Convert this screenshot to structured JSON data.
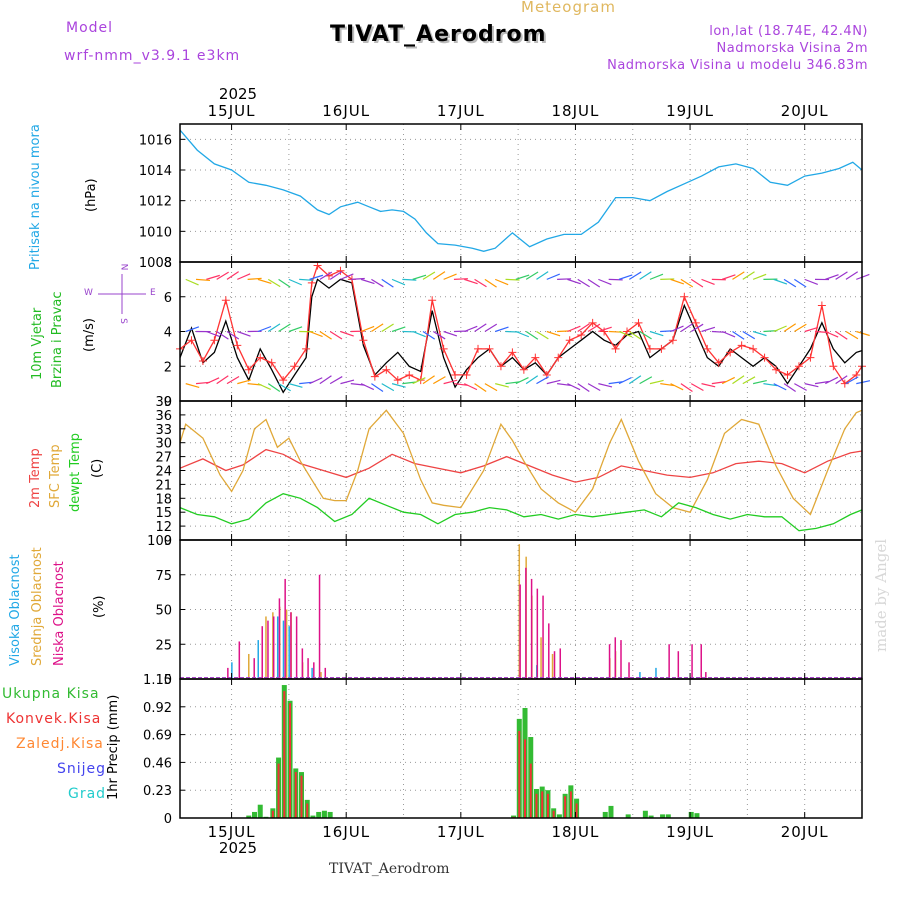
{
  "header": {
    "model_label": "Model",
    "model_name": "wrf-nmm_v3.9.1  e3km",
    "meteogram_label": "Meteogram",
    "title": "TIVAT_Aerodrom",
    "lonlat": "lon,lat (18.74E, 42.4N)",
    "elevation": "Nadmorska Visina 2m",
    "model_elevation": "Nadmorska Visina u modelu 346.83m"
  },
  "footer": {
    "station": "TIVAT_Aerodrom",
    "credit": "made by Angel"
  },
  "colors": {
    "pressure": "#22a8e6",
    "wind_speed": "#000000",
    "wind_gust": "#ff3333",
    "temp2m": "#ee4444",
    "sfc_temp": "#e0a838",
    "dewpoint": "#22cc22",
    "high_cloud": "#22a8e6",
    "mid_cloud": "#e0a838",
    "low_cloud": "#dd1188",
    "total_precip": "#33bb33",
    "conv_precip": "#ee3333",
    "frozen": "#ff8833",
    "snow": "#4444ee",
    "graupel": "#22cccc",
    "credit": "#d8d8d8"
  },
  "time_axis": {
    "year": "2025",
    "ticks": [
      "15JUL",
      "16JUL",
      "17JUL",
      "18JUL",
      "19JUL",
      "20JUL"
    ]
  },
  "panels": {
    "pressure": {
      "label": "Pritisak na nivou mora",
      "unit": "(hPa)"
    },
    "wind": {
      "label1": "10m Vjetar",
      "label2": "Brzina i Pravac",
      "unit": "(m/s)",
      "compass_n": "N",
      "compass_e": "E",
      "compass_w": "W",
      "compass_s": "S"
    },
    "temp": {
      "label1": "2m Temp",
      "label2": "SFC Temp",
      "label3": "dewpt Temp",
      "unit": "(C)"
    },
    "cloud": {
      "label1": "Visoka Oblacnost",
      "label2": "Srednja Oblacnost",
      "label3": "Niska Oblacnost",
      "unit": "(%)"
    },
    "precip": {
      "label_total": "Ukupna Kisa",
      "label_conv": "Konvek.Kisa",
      "label_frozen": "Zaledj.Kisa",
      "label_snow": "Snijeg",
      "label_graupel": "Grad",
      "unit": "1hr Precip (mm)"
    }
  },
  "chart_data": [
    {
      "type": "line",
      "title": "Pritisak na nivou mora",
      "ylabel": "(hPa)",
      "x_range_days": [
        14.55,
        20.5
      ],
      "ylim": [
        1008,
        1017
      ],
      "yticks": [
        1008,
        1010,
        1012,
        1014,
        1016
      ],
      "series": [
        {
          "name": "Pressure",
          "x": [
            14.55,
            14.7,
            14.85,
            15.0,
            15.15,
            15.3,
            15.45,
            15.6,
            15.75,
            15.85,
            15.95,
            16.1,
            16.2,
            16.3,
            16.4,
            16.5,
            16.6,
            16.7,
            16.8,
            16.95,
            17.1,
            17.2,
            17.3,
            17.45,
            17.6,
            17.75,
            17.9,
            18.05,
            18.2,
            18.35,
            18.5,
            18.65,
            18.8,
            18.95,
            19.1,
            19.25,
            19.4,
            19.55,
            19.7,
            19.85,
            20.0,
            20.15,
            20.3,
            20.42,
            20.5
          ],
          "y": [
            1016.6,
            1015.3,
            1014.4,
            1014.0,
            1013.2,
            1013.0,
            1012.7,
            1012.3,
            1011.4,
            1011.1,
            1011.6,
            1011.9,
            1011.6,
            1011.3,
            1011.4,
            1011.3,
            1010.8,
            1009.9,
            1009.2,
            1009.1,
            1008.9,
            1008.7,
            1008.9,
            1009.9,
            1009.0,
            1009.5,
            1009.8,
            1009.8,
            1010.6,
            1012.2,
            1012.2,
            1012.0,
            1012.6,
            1013.1,
            1013.6,
            1014.2,
            1014.4,
            1014.1,
            1013.2,
            1013.0,
            1013.6,
            1013.8,
            1014.1,
            1014.5,
            1014.0
          ]
        }
      ]
    },
    {
      "type": "line",
      "title": "10m Vjetar Brzina i Pravac",
      "ylabel": "(m/s)",
      "x_range_days": [
        14.55,
        20.5
      ],
      "ylim": [
        0,
        8
      ],
      "yticks": [
        0,
        2,
        4,
        6,
        8
      ],
      "series": [
        {
          "name": "Wind speed",
          "x": [
            14.55,
            14.65,
            14.75,
            14.85,
            14.95,
            15.05,
            15.15,
            15.25,
            15.35,
            15.45,
            15.55,
            15.65,
            15.7,
            15.75,
            15.85,
            15.95,
            16.05,
            16.15,
            16.25,
            16.35,
            16.45,
            16.55,
            16.65,
            16.75,
            16.85,
            16.95,
            17.05,
            17.15,
            17.25,
            17.35,
            17.45,
            17.55,
            17.65,
            17.75,
            17.85,
            17.95,
            18.05,
            18.15,
            18.25,
            18.35,
            18.45,
            18.55,
            18.65,
            18.75,
            18.85,
            18.95,
            19.05,
            19.15,
            19.25,
            19.35,
            19.45,
            19.55,
            19.65,
            19.75,
            19.85,
            19.95,
            20.05,
            20.15,
            20.25,
            20.35,
            20.45,
            20.5
          ],
          "y": [
            2.5,
            4.2,
            2.2,
            2.8,
            4.6,
            2.5,
            1.2,
            3.0,
            1.8,
            0.5,
            1.5,
            2.5,
            6.0,
            7.0,
            6.5,
            7.0,
            6.8,
            3.2,
            1.5,
            2.2,
            2.8,
            2.0,
            1.7,
            5.2,
            2.5,
            0.8,
            1.8,
            2.5,
            3.0,
            2.0,
            2.5,
            1.8,
            2.2,
            1.5,
            2.5,
            3.0,
            3.5,
            4.0,
            3.5,
            3.2,
            3.8,
            4.0,
            2.5,
            3.0,
            3.5,
            5.5,
            4.0,
            2.5,
            2.0,
            3.0,
            2.5,
            2.0,
            2.5,
            2.0,
            1.0,
            2.0,
            3.0,
            4.5,
            3.0,
            2.2,
            2.8,
            2.9
          ]
        },
        {
          "name": "Wind gust",
          "x": [
            14.55,
            14.65,
            14.75,
            14.85,
            14.95,
            15.05,
            15.15,
            15.25,
            15.35,
            15.45,
            15.55,
            15.65,
            15.7,
            15.75,
            15.85,
            15.95,
            16.05,
            16.15,
            16.25,
            16.35,
            16.45,
            16.55,
            16.65,
            16.75,
            16.85,
            16.95,
            17.05,
            17.15,
            17.25,
            17.35,
            17.45,
            17.55,
            17.65,
            17.75,
            17.85,
            17.95,
            18.05,
            18.15,
            18.25,
            18.35,
            18.45,
            18.55,
            18.65,
            18.75,
            18.85,
            18.95,
            19.05,
            19.15,
            19.25,
            19.35,
            19.45,
            19.55,
            19.65,
            19.75,
            19.85,
            19.95,
            20.05,
            20.15,
            20.25,
            20.35,
            20.45,
            20.5
          ],
          "y": [
            3.0,
            3.5,
            2.3,
            3.5,
            5.8,
            3.2,
            1.8,
            2.5,
            2.2,
            1.2,
            2.0,
            3.0,
            6.8,
            7.8,
            7.2,
            7.5,
            7.0,
            3.5,
            1.4,
            1.8,
            1.2,
            1.5,
            1.2,
            5.8,
            3.0,
            1.5,
            1.5,
            3.0,
            3.0,
            2.0,
            2.8,
            1.8,
            2.5,
            1.5,
            2.5,
            3.5,
            3.8,
            4.5,
            4.0,
            3.0,
            4.0,
            4.5,
            3.0,
            3.0,
            3.5,
            6.0,
            4.5,
            3.0,
            2.2,
            2.8,
            3.2,
            3.0,
            2.5,
            1.8,
            1.5,
            2.0,
            2.5,
            5.5,
            2.0,
            1.0,
            1.5,
            2.0
          ]
        }
      ]
    },
    {
      "type": "line",
      "title": "2m Temp / SFC Temp / dewpt Temp",
      "ylabel": "(C)",
      "x_range_days": [
        14.55,
        20.5
      ],
      "ylim": [
        9,
        39
      ],
      "yticks": [
        9,
        12,
        15,
        18,
        21,
        24,
        27,
        30,
        33,
        36,
        39
      ],
      "series": [
        {
          "name": "2m Temp",
          "x": [
            14.55,
            14.75,
            14.95,
            15.1,
            15.3,
            15.45,
            15.6,
            15.8,
            16.0,
            16.2,
            16.4,
            16.6,
            16.8,
            17.0,
            17.2,
            17.4,
            17.6,
            17.8,
            18.0,
            18.2,
            18.4,
            18.6,
            18.8,
            19.0,
            19.2,
            19.4,
            19.6,
            19.8,
            20.0,
            20.2,
            20.4,
            20.5
          ],
          "y": [
            24.5,
            26.5,
            24.0,
            25.2,
            28.5,
            27.5,
            25.5,
            24.0,
            22.5,
            24.5,
            27.5,
            25.5,
            24.5,
            23.5,
            25.0,
            27.0,
            25.0,
            23.0,
            21.5,
            22.5,
            25.0,
            24.0,
            23.0,
            22.5,
            23.5,
            25.5,
            26.0,
            25.5,
            23.5,
            26.0,
            27.8,
            28.2
          ]
        },
        {
          "name": "SFC Temp",
          "x": [
            14.55,
            14.6,
            14.75,
            14.9,
            15.0,
            15.1,
            15.2,
            15.3,
            15.4,
            15.5,
            15.6,
            15.7,
            15.8,
            15.9,
            16.0,
            16.1,
            16.2,
            16.35,
            16.5,
            16.65,
            16.75,
            16.85,
            17.0,
            17.2,
            17.35,
            17.45,
            17.55,
            17.7,
            17.85,
            18.0,
            18.15,
            18.3,
            18.4,
            18.55,
            18.7,
            18.85,
            19.0,
            19.15,
            19.3,
            19.45,
            19.6,
            19.75,
            19.9,
            20.05,
            20.2,
            20.35,
            20.45,
            20.5
          ],
          "y": [
            30.0,
            34.0,
            31.0,
            23.0,
            19.5,
            24.0,
            33.0,
            35.0,
            29.0,
            31.0,
            26.0,
            22.0,
            18.0,
            17.5,
            17.5,
            24.0,
            33.0,
            37.0,
            32.0,
            22.0,
            17.0,
            16.5,
            16.0,
            24.0,
            34.0,
            30.5,
            26.0,
            20.0,
            17.0,
            15.0,
            20.0,
            30.0,
            35.0,
            26.0,
            19.0,
            16.0,
            15.0,
            22.0,
            32.0,
            35.0,
            34.0,
            25.0,
            18.0,
            14.5,
            24.0,
            33.0,
            36.5,
            37.0
          ]
        },
        {
          "name": "dewpt Temp",
          "x": [
            14.55,
            14.7,
            14.85,
            15.0,
            15.15,
            15.3,
            15.45,
            15.6,
            15.75,
            15.9,
            16.05,
            16.2,
            16.35,
            16.5,
            16.65,
            16.8,
            16.95,
            17.1,
            17.25,
            17.4,
            17.55,
            17.7,
            17.85,
            18.0,
            18.15,
            18.3,
            18.45,
            18.6,
            18.75,
            18.9,
            19.05,
            19.2,
            19.35,
            19.5,
            19.65,
            19.8,
            19.95,
            20.1,
            20.25,
            20.4,
            20.5
          ],
          "y": [
            16.0,
            14.5,
            14.0,
            12.5,
            13.5,
            17.0,
            19.0,
            18.0,
            16.0,
            13.0,
            14.5,
            18.0,
            16.5,
            15.0,
            14.5,
            12.5,
            14.5,
            15.0,
            16.0,
            15.5,
            14.0,
            14.5,
            13.5,
            14.5,
            14.0,
            14.5,
            15.0,
            15.5,
            14.0,
            17.0,
            16.0,
            14.5,
            13.5,
            14.5,
            14.0,
            14.0,
            11.0,
            11.5,
            12.5,
            14.5,
            15.5
          ]
        }
      ]
    },
    {
      "type": "bar",
      "title": "Visoka / Srednja / Niska Oblacnost",
      "ylabel": "(%)",
      "x_range_days": [
        14.55,
        20.5
      ],
      "ylim": [
        0,
        100
      ],
      "yticks": [
        0,
        25,
        50,
        75,
        100
      ],
      "series": [
        {
          "name": "Visoka Oblacnost",
          "x": [
            15.02,
            15.25,
            15.38,
            15.42,
            15.47,
            15.52,
            15.72,
            17.53,
            17.68,
            18.58,
            18.72
          ],
          "y": [
            12,
            28,
            35,
            45,
            42,
            38,
            8,
            18,
            10,
            5,
            8
          ]
        },
        {
          "name": "Srednja Oblacnost",
          "x": [
            15.15,
            15.3,
            15.36,
            15.42,
            15.48,
            15.52,
            15.62,
            15.78,
            17.51,
            17.57,
            17.62,
            17.7,
            17.8,
            18.3,
            18.35
          ],
          "y": [
            18,
            45,
            48,
            52,
            50,
            48,
            12,
            5,
            97,
            88,
            60,
            30,
            18,
            15,
            20
          ]
        },
        {
          "name": "Niska Oblacnost",
          "x": [
            14.95,
            15.05,
            15.18,
            15.25,
            15.3,
            15.35,
            15.4,
            15.45,
            15.5,
            15.55,
            15.6,
            15.65,
            15.7,
            15.75,
            15.8,
            17.5,
            17.55,
            17.6,
            17.65,
            17.7,
            17.75,
            17.8,
            17.85,
            18.28,
            18.33,
            18.38,
            18.45,
            18.8,
            18.88,
            19.0,
            19.08,
            19.12
          ],
          "y": [
            8,
            27,
            15,
            38,
            42,
            45,
            58,
            72,
            48,
            45,
            22,
            15,
            12,
            75,
            8,
            68,
            80,
            72,
            65,
            60,
            40,
            20,
            22,
            25,
            30,
            28,
            12,
            25,
            20,
            25,
            25,
            5
          ]
        }
      ]
    },
    {
      "type": "bar",
      "title": "1hr Precip",
      "ylabel": "1hr Precip (mm)",
      "x_range_days": [
        14.55,
        20.5
      ],
      "ylim": [
        0,
        1.15
      ],
      "yticks": [
        0,
        0.23,
        0.46,
        0.69,
        0.92,
        1.15
      ],
      "series": [
        {
          "name": "Ukupna Kisa",
          "x": [
            15.15,
            15.2,
            15.25,
            15.3,
            15.36,
            15.41,
            15.46,
            15.51,
            15.56,
            15.61,
            15.66,
            15.71,
            15.76,
            15.81,
            15.86,
            17.46,
            17.51,
            17.56,
            17.61,
            17.66,
            17.71,
            17.76,
            17.81,
            17.86,
            17.91,
            17.96,
            18.01,
            18.26,
            18.31,
            18.46,
            18.61,
            18.66,
            18.76,
            18.81,
            19.01,
            19.06
          ],
          "y": [
            0.02,
            0.05,
            0.11,
            0.01,
            0.08,
            0.5,
            1.1,
            0.97,
            0.41,
            0.38,
            0.15,
            0.02,
            0.05,
            0.06,
            0.05,
            0.02,
            0.82,
            0.91,
            0.67,
            0.24,
            0.26,
            0.23,
            0.08,
            0.03,
            0.2,
            0.27,
            0.16,
            0.05,
            0.1,
            0.03,
            0.06,
            0.02,
            0.03,
            0.03,
            0.05,
            0.04
          ]
        },
        {
          "name": "Konvek.Kisa",
          "x": [
            15.36,
            15.41,
            15.46,
            15.51,
            15.56,
            15.61,
            15.66,
            17.46,
            17.51,
            17.56,
            17.61,
            17.66,
            17.71,
            17.76,
            17.81,
            17.91,
            17.96,
            18.01
          ],
          "y": [
            0.06,
            0.45,
            1.05,
            0.95,
            0.38,
            0.35,
            0.12,
            0.01,
            0.72,
            0.65,
            0.45,
            0.2,
            0.22,
            0.2,
            0.06,
            0.18,
            0.22,
            0.12
          ]
        },
        {
          "name": "Zaledj.Kisa",
          "x": [],
          "y": []
        },
        {
          "name": "Snijeg",
          "x": [],
          "y": []
        },
        {
          "name": "Grad",
          "x": [],
          "y": []
        }
      ]
    }
  ]
}
